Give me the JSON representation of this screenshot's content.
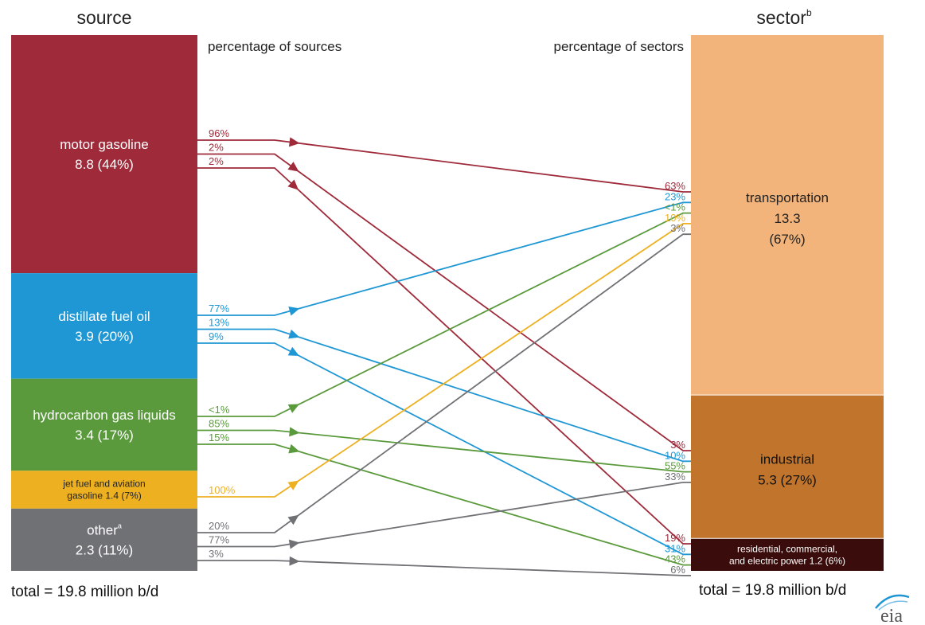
{
  "chart_data": {
    "type": "flow",
    "units": "million b/d",
    "source_heading": "source",
    "sector_heading": "sector",
    "sector_heading_sup": "b",
    "source_pct_heading": "percentage of sources",
    "sector_pct_heading": "percentage of sectors",
    "source_total_label": "total = 19.8 million b/d",
    "sector_total_label": "total = 19.8 million b/d",
    "logo_text": "eia",
    "sources": [
      {
        "key": "mg",
        "lines": [
          "motor gasoline",
          "8.8 (44%)"
        ],
        "value": 8.8,
        "percent": 44,
        "color": "#9e2a3a",
        "text_color": "#ffffff"
      },
      {
        "key": "dfo",
        "lines": [
          "distillate fuel oil",
          "3.9 (20%)"
        ],
        "value": 3.9,
        "percent": 20,
        "color": "#1f97d4",
        "text_color": "#ffffff"
      },
      {
        "key": "hgl",
        "lines": [
          "hydrocarbon gas liquids",
          "3.4 (17%)"
        ],
        "value": 3.4,
        "percent": 17,
        "color": "#5a9a3c",
        "text_color": "#ffffff"
      },
      {
        "key": "jet",
        "lines": [
          "jet fuel and aviation",
          "gasoline  1.4 (7%)"
        ],
        "value": 1.4,
        "percent": 7,
        "color": "#ecb021",
        "text_color": "#222222"
      },
      {
        "key": "oth",
        "lines": [
          "other",
          "2.3 (11%)"
        ],
        "sup": "a",
        "value": 2.3,
        "percent": 11,
        "color": "#707175",
        "text_color": "#ffffff"
      }
    ],
    "sectors": [
      {
        "key": "tr",
        "lines": [
          "transportation",
          "13.3",
          "(67%)"
        ],
        "value": 13.3,
        "percent": 67,
        "color": "#f2b47a",
        "text_color": "#222222"
      },
      {
        "key": "ind",
        "lines": [
          "industrial",
          "5.3  (27%)"
        ],
        "value": 5.3,
        "percent": 27,
        "color": "#c0742c",
        "text_color": "#111111"
      },
      {
        "key": "res",
        "lines": [
          "residential, commercial,",
          "and electric power  1.2  (6%)"
        ],
        "value": 1.2,
        "percent": 6,
        "color": "#3a0c0c",
        "text_color": "#ffffff"
      }
    ],
    "flows": [
      {
        "from": "mg",
        "to": "tr",
        "source_pct": "96%",
        "sector_pct": "63%"
      },
      {
        "from": "mg",
        "to": "ind",
        "source_pct": "2%",
        "sector_pct": "3%"
      },
      {
        "from": "mg",
        "to": "res",
        "source_pct": "2%",
        "sector_pct": "19%"
      },
      {
        "from": "dfo",
        "to": "tr",
        "source_pct": "77%",
        "sector_pct": "23%"
      },
      {
        "from": "dfo",
        "to": "ind",
        "source_pct": "13%",
        "sector_pct": "10%"
      },
      {
        "from": "dfo",
        "to": "res",
        "source_pct": "9%",
        "sector_pct": "31%"
      },
      {
        "from": "hgl",
        "to": "tr",
        "source_pct": "<1%",
        "sector_pct": "<1%"
      },
      {
        "from": "hgl",
        "to": "ind",
        "source_pct": "85%",
        "sector_pct": "55%"
      },
      {
        "from": "hgl",
        "to": "res",
        "source_pct": "15%",
        "sector_pct": "43%"
      },
      {
        "from": "jet",
        "to": "tr",
        "source_pct": "100%",
        "sector_pct": "10%"
      },
      {
        "from": "oth",
        "to": "tr",
        "source_pct": "20%",
        "sector_pct": "3%"
      },
      {
        "from": "oth",
        "to": "ind",
        "source_pct": "77%",
        "sector_pct": "33%"
      },
      {
        "from": "oth",
        "to": "res",
        "source_pct": "3%",
        "sector_pct": "6%"
      }
    ]
  }
}
